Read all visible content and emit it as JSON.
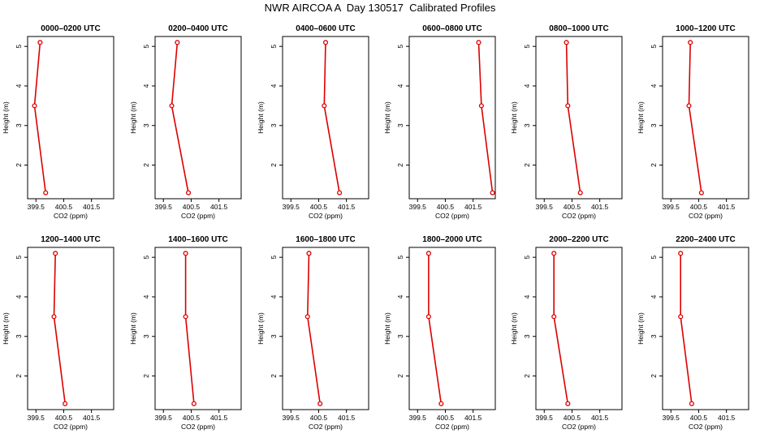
{
  "title": "NWR AIRCOA A  Day 130517  Calibrated Profiles",
  "colors": {
    "line": "#dd0000",
    "axis": "#000000",
    "background": "#ffffff"
  },
  "chart_data": [
    {
      "type": "line",
      "title": "0000–0200 UTC",
      "xlabel": "CO2 (ppm)",
      "ylabel": "Height (m)",
      "xlim": [
        399.2,
        402.3
      ],
      "ylim": [
        1.15,
        5.25
      ],
      "xticks": [
        "399.5",
        "400.5",
        "401.5"
      ],
      "yticks": [
        "2",
        "3",
        "4",
        "5"
      ],
      "x": [
        399.65,
        399.45,
        399.85
      ],
      "y": [
        5.1,
        3.5,
        1.3
      ]
    },
    {
      "type": "line",
      "title": "0200–0400 UTC",
      "xlabel": "CO2 (ppm)",
      "ylabel": "Height (m)",
      "xlim": [
        399.2,
        402.3
      ],
      "ylim": [
        1.15,
        5.25
      ],
      "xticks": [
        "399.5",
        "400.5",
        "401.5"
      ],
      "yticks": [
        "2",
        "3",
        "4",
        "5"
      ],
      "x": [
        400.0,
        399.8,
        400.4
      ],
      "y": [
        5.1,
        3.5,
        1.3
      ]
    },
    {
      "type": "line",
      "title": "0400–0600 UTC",
      "xlabel": "CO2 (ppm)",
      "ylabel": "Height (m)",
      "xlim": [
        399.2,
        402.3
      ],
      "ylim": [
        1.15,
        5.25
      ],
      "xticks": [
        "399.5",
        "400.5",
        "401.5"
      ],
      "yticks": [
        "2",
        "3",
        "4",
        "5"
      ],
      "x": [
        400.75,
        400.7,
        401.25
      ],
      "y": [
        5.1,
        3.5,
        1.3
      ]
    },
    {
      "type": "line",
      "title": "0600–0800 UTC",
      "xlabel": "CO2 (ppm)",
      "ylabel": "Height (m)",
      "xlim": [
        399.2,
        402.3
      ],
      "ylim": [
        1.15,
        5.25
      ],
      "xticks": [
        "399.5",
        "400.5",
        "401.5"
      ],
      "yticks": [
        "2",
        "3",
        "4",
        "5"
      ],
      "x": [
        401.7,
        401.8,
        402.2
      ],
      "y": [
        5.1,
        3.5,
        1.3
      ]
    },
    {
      "type": "line",
      "title": "0800–1000 UTC",
      "xlabel": "CO2 (ppm)",
      "ylabel": "Height (m)",
      "xlim": [
        399.2,
        402.3
      ],
      "ylim": [
        1.15,
        5.25
      ],
      "xticks": [
        "399.5",
        "400.5",
        "401.5"
      ],
      "yticks": [
        "2",
        "3",
        "4",
        "5"
      ],
      "x": [
        400.3,
        400.35,
        400.8
      ],
      "y": [
        5.1,
        3.5,
        1.3
      ]
    },
    {
      "type": "line",
      "title": "1000–1200 UTC",
      "xlabel": "CO2 (ppm)",
      "ylabel": "Height (m)",
      "xlim": [
        399.2,
        402.3
      ],
      "ylim": [
        1.15,
        5.25
      ],
      "xticks": [
        "399.5",
        "400.5",
        "401.5"
      ],
      "yticks": [
        "2",
        "3",
        "4",
        "5"
      ],
      "x": [
        400.2,
        400.15,
        400.6
      ],
      "y": [
        5.1,
        3.5,
        1.3
      ]
    },
    {
      "type": "line",
      "title": "1200–1400 UTC",
      "xlabel": "CO2 (ppm)",
      "ylabel": "Height (m)",
      "xlim": [
        399.2,
        402.3
      ],
      "ylim": [
        1.15,
        5.25
      ],
      "xticks": [
        "399.5",
        "400.5",
        "401.5"
      ],
      "yticks": [
        "2",
        "3",
        "4",
        "5"
      ],
      "x": [
        400.2,
        400.15,
        400.55
      ],
      "y": [
        5.1,
        3.5,
        1.3
      ]
    },
    {
      "type": "line",
      "title": "1400–1600 UTC",
      "xlabel": "CO2 (ppm)",
      "ylabel": "Height (m)",
      "xlim": [
        399.2,
        402.3
      ],
      "ylim": [
        1.15,
        5.25
      ],
      "xticks": [
        "399.5",
        "400.5",
        "401.5"
      ],
      "yticks": [
        "2",
        "3",
        "4",
        "5"
      ],
      "x": [
        400.3,
        400.3,
        400.6
      ],
      "y": [
        5.1,
        3.5,
        1.3
      ]
    },
    {
      "type": "line",
      "title": "1600–1800 UTC",
      "xlabel": "CO2 (ppm)",
      "ylabel": "Height (m)",
      "xlim": [
        399.2,
        402.3
      ],
      "ylim": [
        1.15,
        5.25
      ],
      "xticks": [
        "399.5",
        "400.5",
        "401.5"
      ],
      "yticks": [
        "2",
        "3",
        "4",
        "5"
      ],
      "x": [
        400.15,
        400.1,
        400.55
      ],
      "y": [
        5.1,
        3.5,
        1.3
      ]
    },
    {
      "type": "line",
      "title": "1800–2000 UTC",
      "xlabel": "CO2 (ppm)",
      "ylabel": "Height (m)",
      "xlim": [
        399.2,
        402.3
      ],
      "ylim": [
        1.15,
        5.25
      ],
      "xticks": [
        "399.5",
        "400.5",
        "401.5"
      ],
      "yticks": [
        "2",
        "3",
        "4",
        "5"
      ],
      "x": [
        399.9,
        399.9,
        400.35
      ],
      "y": [
        5.1,
        3.5,
        1.3
      ]
    },
    {
      "type": "line",
      "title": "2000–2200 UTC",
      "xlabel": "CO2 (ppm)",
      "ylabel": "Height (m)",
      "xlim": [
        399.2,
        402.3
      ],
      "ylim": [
        1.15,
        5.25
      ],
      "xticks": [
        "399.5",
        "400.5",
        "401.5"
      ],
      "yticks": [
        "2",
        "3",
        "4",
        "5"
      ],
      "x": [
        399.85,
        399.85,
        400.35
      ],
      "y": [
        5.1,
        3.5,
        1.3
      ]
    },
    {
      "type": "line",
      "title": "2200–2400 UTC",
      "xlabel": "CO2 (ppm)",
      "ylabel": "Height (m)",
      "xlim": [
        399.2,
        402.3
      ],
      "ylim": [
        1.15,
        5.25
      ],
      "xticks": [
        "399.5",
        "400.5",
        "401.5"
      ],
      "yticks": [
        "2",
        "3",
        "4",
        "5"
      ],
      "x": [
        399.85,
        399.85,
        400.25
      ],
      "y": [
        5.1,
        3.5,
        1.3
      ]
    }
  ]
}
